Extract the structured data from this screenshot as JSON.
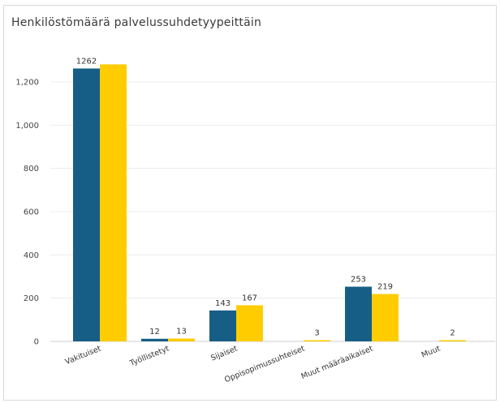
{
  "chart_data": {
    "type": "bar",
    "title": "Henkilöstömäärä palvelussuhdetyypeittäin",
    "categories": [
      "Vakituiset",
      "Työllistetyt",
      "Sijaiset",
      "Oppisopimussuhteiset",
      "Muut määräaikaiset",
      "Muut"
    ],
    "series": [
      {
        "values": [
          1262,
          12,
          143,
          0,
          253,
          0
        ],
        "color": "#175e86",
        "labels": [
          "1262",
          "12",
          "143",
          "",
          "253",
          ""
        ]
      },
      {
        "values": [
          1281,
          13,
          167,
          3,
          219,
          2
        ],
        "color": "#ffcc00",
        "labels": [
          "",
          "13",
          "167",
          "3",
          "219",
          "2"
        ]
      }
    ],
    "yticks": [
      "0",
      "200",
      "400",
      "600",
      "800",
      "1,000",
      "1,200"
    ],
    "ylim": [
      0,
      1400
    ],
    "grid": true,
    "legend": "none"
  }
}
